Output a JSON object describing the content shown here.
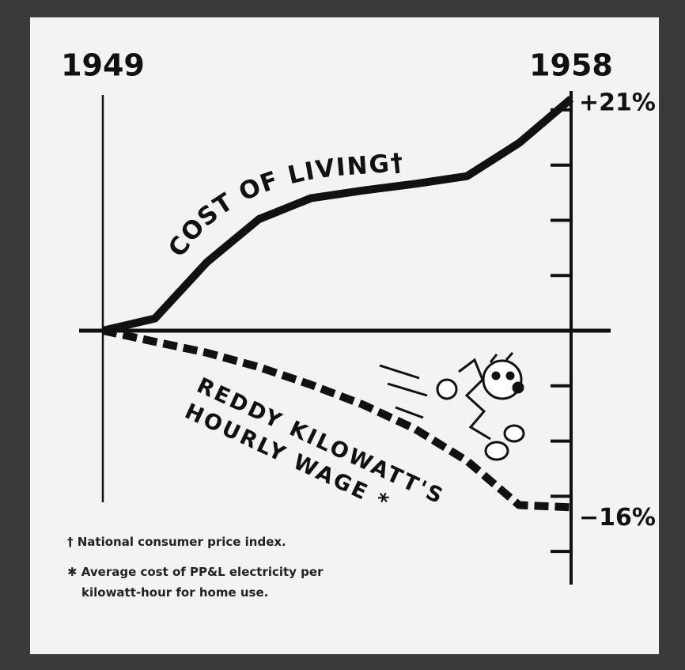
{
  "chart_data": {
    "type": "line",
    "x": [
      1949,
      1950,
      1951,
      1952,
      1953,
      1954,
      1955,
      1956,
      1957,
      1958
    ],
    "xlim": [
      1949,
      1958
    ],
    "xticks": [
      1949,
      1958
    ],
    "ylim": [
      -23,
      22
    ],
    "yticks": [
      -20,
      -15,
      -10,
      -5,
      0,
      5,
      10,
      15,
      20
    ],
    "series": [
      {
        "name": "COST OF LIVING†",
        "color": "#111111",
        "values": [
          0,
          1.1,
          6.2,
          10.1,
          12,
          12.7,
          13.3,
          14,
          17,
          21
        ],
        "value_labels": [
          null,
          null,
          null,
          null,
          null,
          null,
          null,
          null,
          null,
          "+21%"
        ]
      },
      {
        "name": "REDDY KILOWATT'S HOURLY WAGE *",
        "color": "#111111",
        "dashed": true,
        "values": [
          0,
          -1,
          -2,
          -3.3,
          -4.9,
          -6.7,
          -8.9,
          -11.8,
          -15.8,
          -16
        ],
        "value_labels": [
          null,
          null,
          null,
          null,
          null,
          null,
          null,
          null,
          null,
          "−16%"
        ]
      }
    ],
    "notes": [
      "† National consumer price index.",
      "✱ Average cost of PP&L electricity per kilowatt-hour for home use."
    ]
  }
}
